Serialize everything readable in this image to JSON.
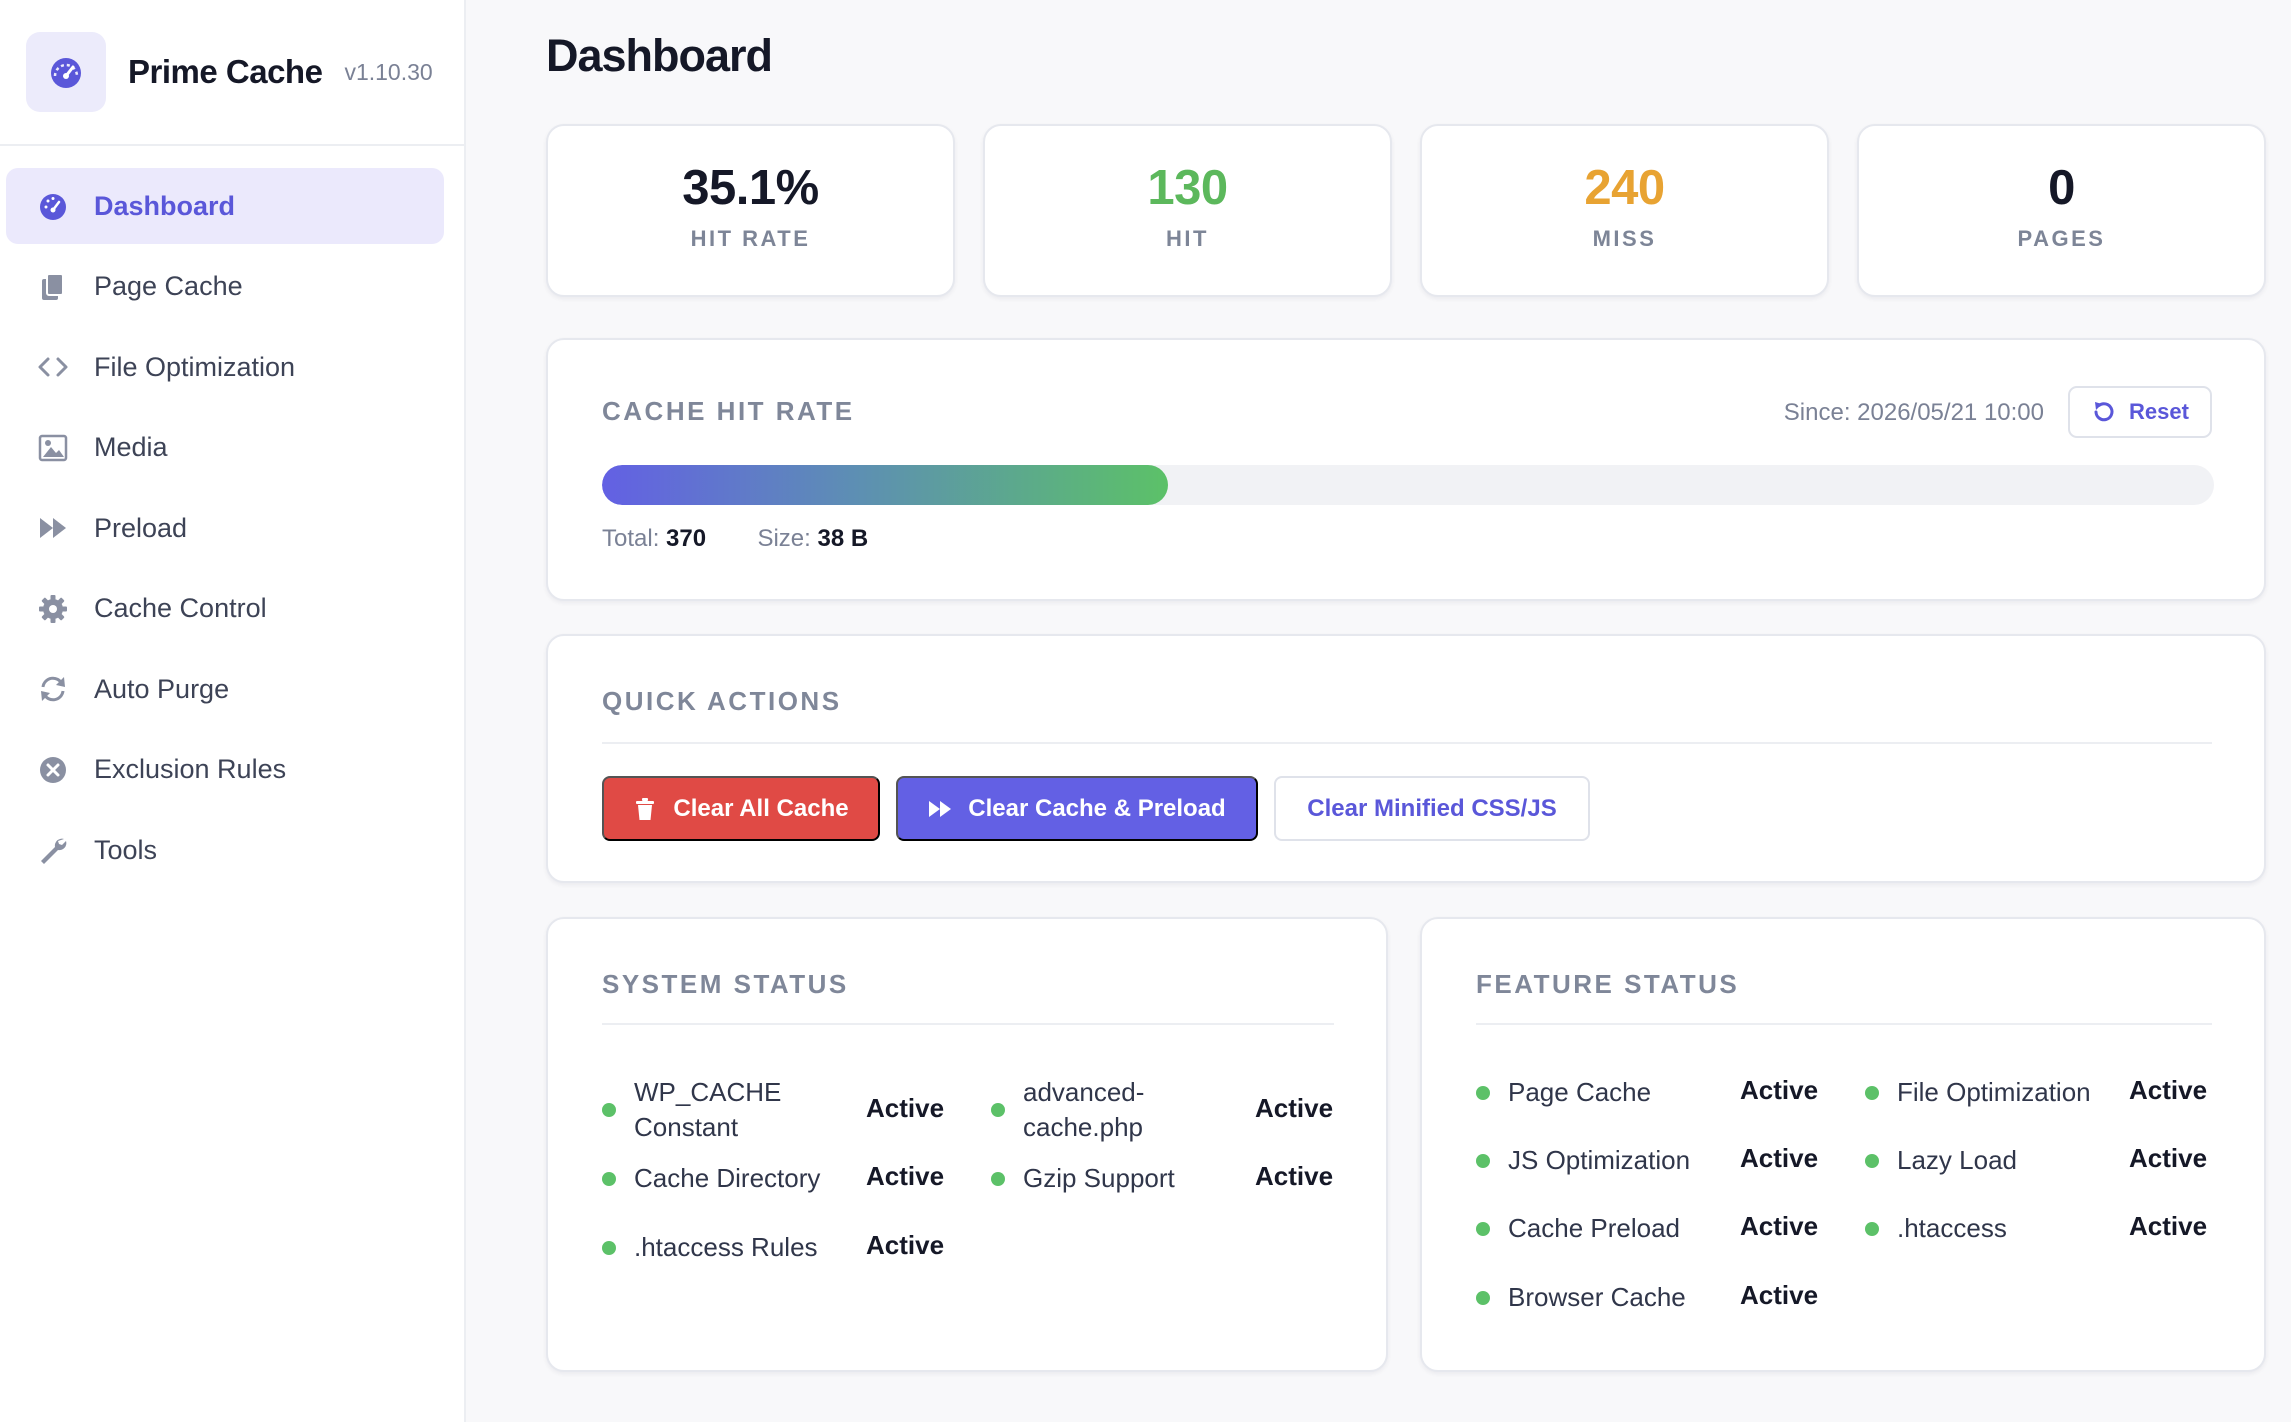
{
  "brand": {
    "name": "Prime Cache",
    "version": "v1.10.30"
  },
  "sidebar": {
    "items": [
      {
        "label": "Dashboard",
        "icon": "gauge-icon",
        "active": true
      },
      {
        "label": "Page Cache",
        "icon": "pages-icon"
      },
      {
        "label": "File Optimization",
        "icon": "code-icon"
      },
      {
        "label": "Media",
        "icon": "image-icon"
      },
      {
        "label": "Preload",
        "icon": "fast-forward-icon"
      },
      {
        "label": "Cache Control",
        "icon": "gear-icon"
      },
      {
        "label": "Auto Purge",
        "icon": "refresh-icon"
      },
      {
        "label": "Exclusion Rules",
        "icon": "x-circle-icon"
      },
      {
        "label": "Tools",
        "icon": "wrench-icon"
      }
    ]
  },
  "page": {
    "title": "Dashboard"
  },
  "stats": [
    {
      "value": "35.1%",
      "label": "HIT RATE",
      "color": "#151827"
    },
    {
      "value": "130",
      "label": "HIT",
      "color": "#5cb85c"
    },
    {
      "value": "240",
      "label": "MISS",
      "color": "#e8a332"
    },
    {
      "value": "0",
      "label": "PAGES",
      "color": "#151827"
    }
  ],
  "hit_rate": {
    "title": "CACHE HIT RATE",
    "since": "Since: 2026/05/21 10:00",
    "reset_label": "Reset",
    "progress_percent": 35.1,
    "total_label": "Total:",
    "total_value": "370",
    "size_label": "Size:",
    "size_value": "38 B"
  },
  "quick_actions": {
    "title": "QUICK ACTIONS",
    "clear_all": "Clear All Cache",
    "clear_preload": "Clear Cache & Preload",
    "clear_minified": "Clear Minified CSS/JS"
  },
  "system_status": {
    "title": "SYSTEM STATUS",
    "items": [
      {
        "name": "WP_CACHE Constant",
        "value": "Active"
      },
      {
        "name": "advanced-cache.php",
        "value": "Active"
      },
      {
        "name": "Cache Directory",
        "value": "Active"
      },
      {
        "name": "Gzip Support",
        "value": "Active"
      },
      {
        "name": ".htaccess Rules",
        "value": "Active"
      }
    ]
  },
  "feature_status": {
    "title": "FEATURE STATUS",
    "items": [
      {
        "name": "Page Cache",
        "value": "Active"
      },
      {
        "name": "File Optimization",
        "value": "Active"
      },
      {
        "name": "JS Optimization",
        "value": "Active"
      },
      {
        "name": "Lazy Load",
        "value": "Active"
      },
      {
        "name": "Cache Preload",
        "value": "Active"
      },
      {
        "name": ".htaccess",
        "value": "Active"
      },
      {
        "name": "Browser Cache",
        "value": "Active"
      }
    ]
  },
  "colors": {
    "accent": "#5a57d9",
    "success": "#5cc168",
    "danger": "#e04a45"
  }
}
